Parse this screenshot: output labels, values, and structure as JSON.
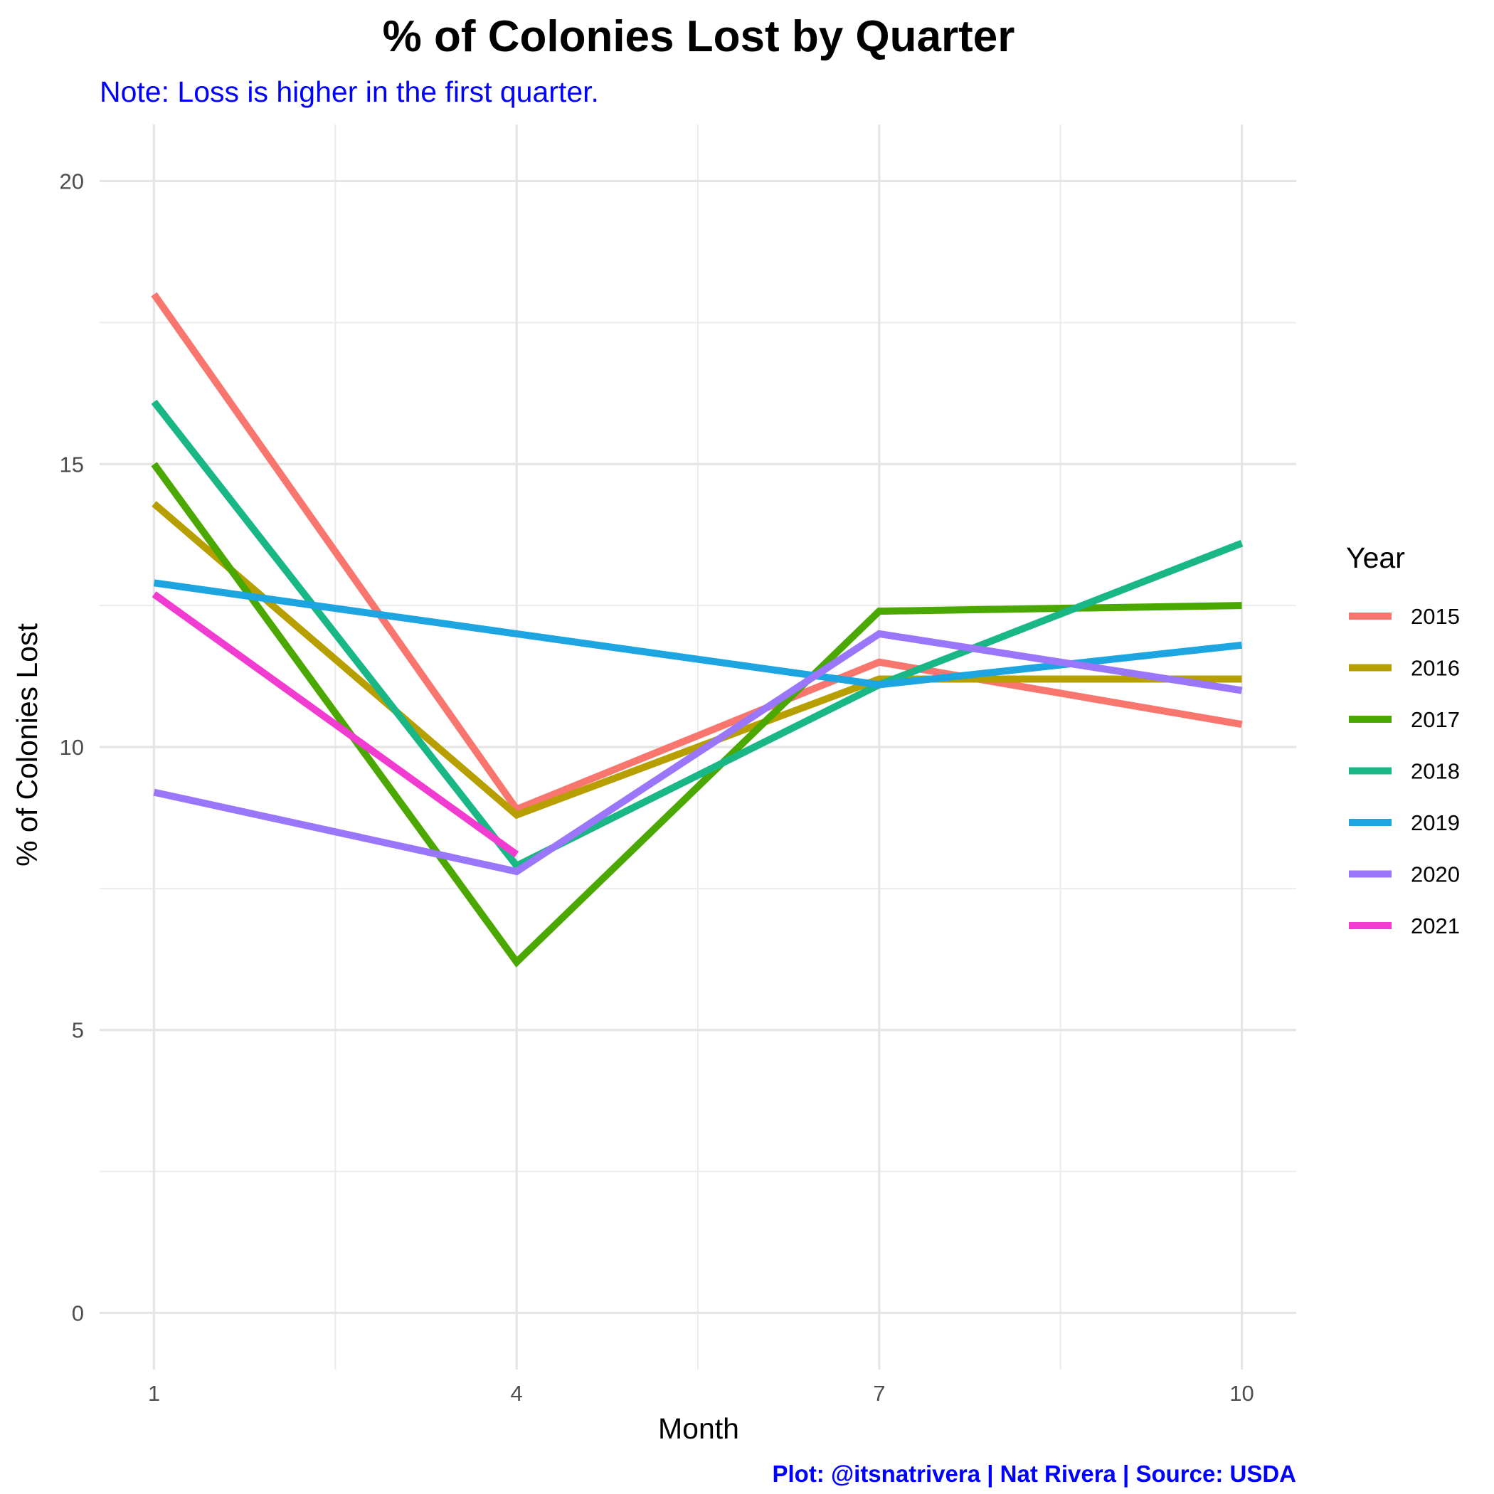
{
  "chart_data": {
    "type": "line",
    "title": "% of Colonies Lost by Quarter",
    "subtitle": "Note: Loss is higher in the first quarter.",
    "xlabel": "Month",
    "ylabel": "% of Colonies Lost",
    "caption": "Plot: @itsnatrivera | Nat Rivera | Source: USDA",
    "x_ticks": [
      "1",
      "4",
      "7",
      "10"
    ],
    "y_ticks": [
      "0",
      "5",
      "10",
      "15",
      "20"
    ],
    "xlim": [
      0.55,
      10.45
    ],
    "ylim": [
      -1,
      21
    ],
    "grid": true,
    "legend": {
      "title": "Year",
      "position": "right"
    },
    "series": [
      {
        "name": "2015",
        "color": "#F8766D",
        "x": [
          1,
          4,
          7,
          10
        ],
        "values": [
          18,
          8.9,
          11.5,
          10.4
        ]
      },
      {
        "name": "2016",
        "color": "#B79F00",
        "x": [
          1,
          4,
          7,
          10
        ],
        "values": [
          14.3,
          8.8,
          11.2,
          11.2
        ]
      },
      {
        "name": "2017",
        "color": "#4AA800",
        "x": [
          1,
          4,
          7,
          10
        ],
        "values": [
          15,
          6.2,
          12.4,
          12.5
        ]
      },
      {
        "name": "2018",
        "color": "#1AB786",
        "x": [
          1,
          4,
          7,
          10
        ],
        "values": [
          16.1,
          7.9,
          11.1,
          13.6
        ]
      },
      {
        "name": "2019",
        "color": "#1DA5E2",
        "x": [
          1,
          4,
          7,
          10
        ],
        "values": [
          12.9,
          12,
          11.1,
          11.8
        ]
      },
      {
        "name": "2020",
        "color": "#9A76FB",
        "x": [
          1,
          4,
          7,
          10
        ],
        "values": [
          9.2,
          7.8,
          12,
          11
        ]
      },
      {
        "name": "2021",
        "color": "#F23BD1",
        "x": [
          1,
          4
        ],
        "values": [
          12.7,
          8.1
        ]
      }
    ]
  }
}
